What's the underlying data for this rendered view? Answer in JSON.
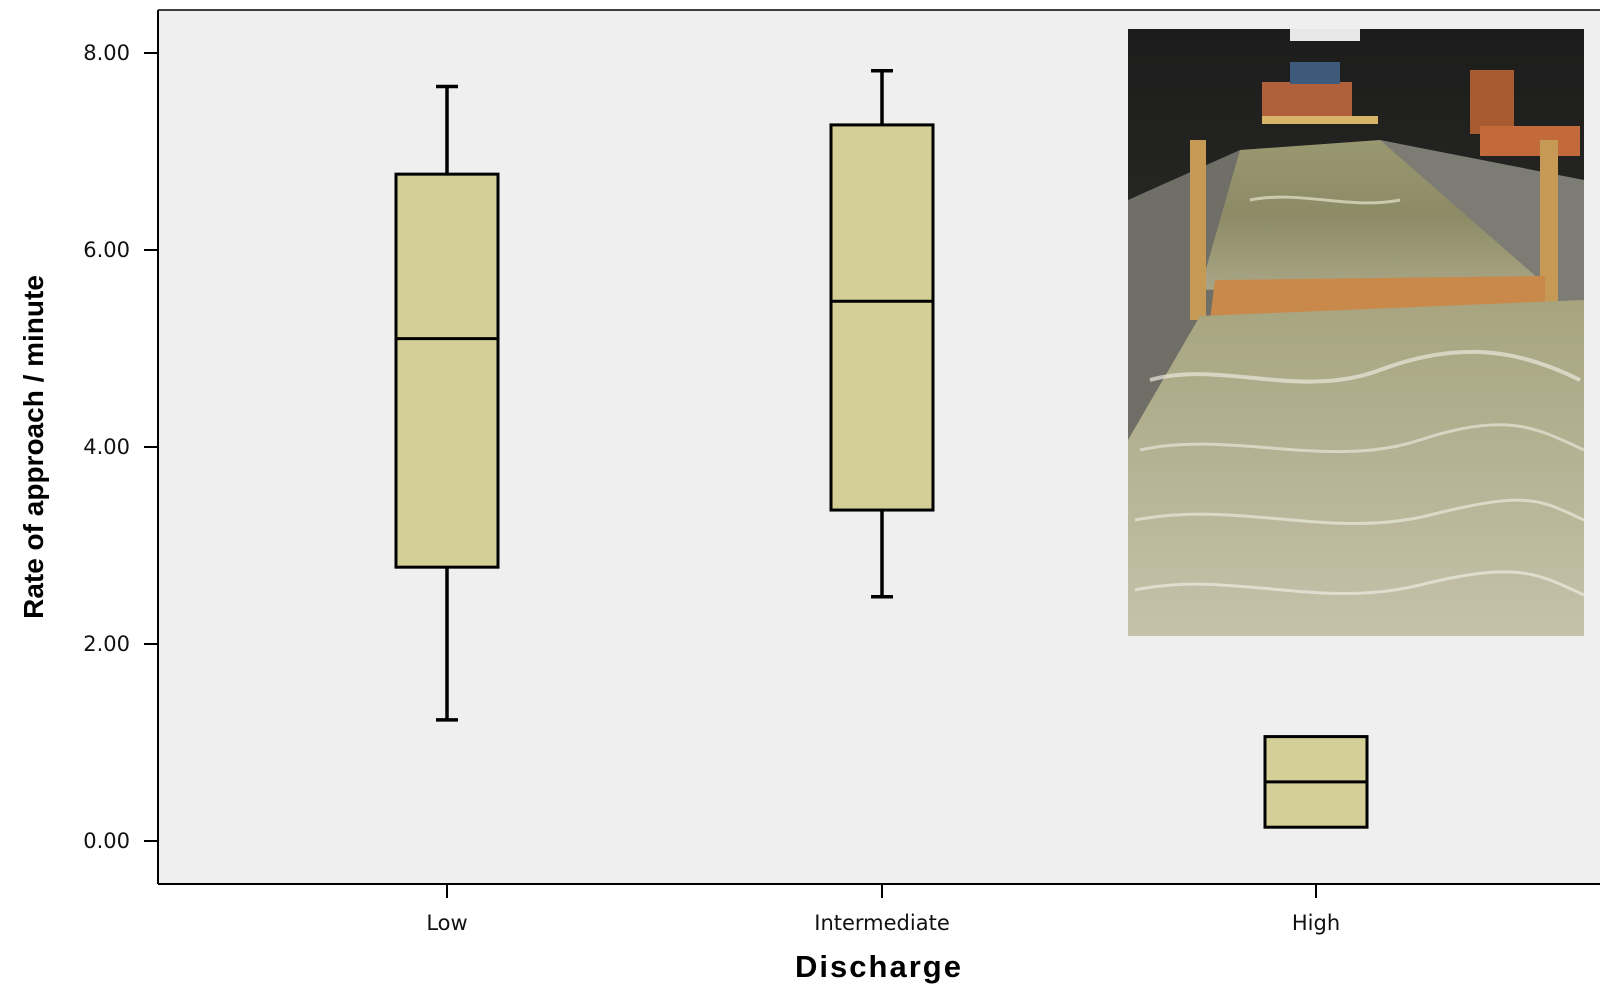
{
  "chart_data": {
    "type": "boxplot",
    "xlabel": "Discharge",
    "ylabel": "Rate of approach / minute",
    "ylim": [
      -0.42,
      8.45
    ],
    "yticks": [
      "0.00",
      "2.00",
      "4.00",
      "6.00",
      "8.00"
    ],
    "ytick_values": [
      0,
      2,
      4,
      6,
      8
    ],
    "categories": [
      "Low",
      "Intermediate",
      "High"
    ],
    "boxes": [
      {
        "category": "Low",
        "min": 1.23,
        "q1": 2.78,
        "median": 5.1,
        "q3": 6.77,
        "max": 7.66
      },
      {
        "category": "Intermediate",
        "min": 2.48,
        "q1": 3.36,
        "median": 5.48,
        "q3": 7.27,
        "max": 7.82
      },
      {
        "category": "High",
        "min": 0.14,
        "q1": 0.14,
        "median": 0.6,
        "q3": 1.06,
        "max": 1.06
      }
    ],
    "grid": false,
    "legend": "none",
    "colors": {
      "plot_background": "#efefef",
      "box_fill": "#d4cf96",
      "stroke": "#000000"
    },
    "inset_photo": "flume-channel-photo"
  }
}
